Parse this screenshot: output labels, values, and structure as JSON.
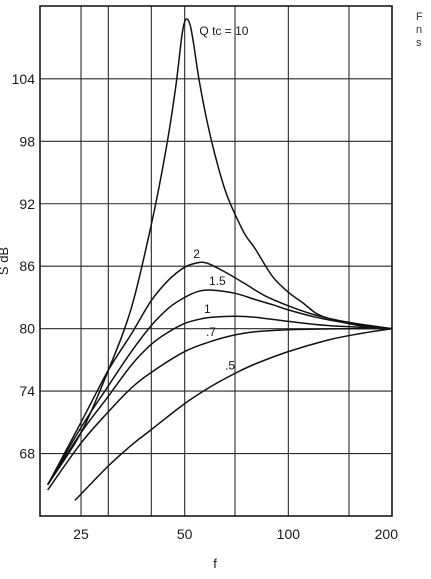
{
  "caption_fragment": [
    "F",
    "n",
    "s"
  ],
  "chart_data": {
    "type": "line",
    "xlabel": "f",
    "ylabel": "S dB",
    "xscale": "log",
    "xlim": [
      19,
      200
    ],
    "ylim": [
      62,
      111
    ],
    "x_ticks": [
      25,
      50,
      100,
      200
    ],
    "x_tick_labels": [
      "25",
      "50",
      "100",
      "200"
    ],
    "x_gridlines": [
      25,
      30,
      40,
      50,
      70,
      100,
      150,
      200
    ],
    "y_ticks": [
      68,
      74,
      80,
      86,
      92,
      98,
      104
    ],
    "y_tick_labels": [
      "68",
      "74",
      "80",
      "86",
      "92",
      "98",
      "104"
    ],
    "grid": true,
    "series": [
      {
        "name": "Q tc = 10",
        "label_text": "Q tc = 10",
        "points": [
          [
            20,
            65
          ],
          [
            25,
            70
          ],
          [
            30,
            76
          ],
          [
            35,
            82
          ],
          [
            40,
            90
          ],
          [
            44,
            97
          ],
          [
            47,
            103
          ],
          [
            49,
            108
          ],
          [
            50,
            109.5
          ],
          [
            51,
            109.7
          ],
          [
            52,
            109
          ],
          [
            53,
            107.5
          ],
          [
            55,
            104
          ],
          [
            58,
            100
          ],
          [
            62,
            96
          ],
          [
            66,
            93
          ],
          [
            70,
            91
          ],
          [
            75,
            89
          ],
          [
            80,
            87.7
          ],
          [
            90,
            85
          ],
          [
            100,
            83.5
          ],
          [
            110,
            82.5
          ],
          [
            120,
            81.5
          ],
          [
            130,
            81
          ],
          [
            140,
            80.7
          ],
          [
            160,
            80.3
          ],
          [
            180,
            80.1
          ],
          [
            200,
            80
          ]
        ]
      },
      {
        "name": "2",
        "label_text": "2",
        "points": [
          [
            20,
            65
          ],
          [
            25,
            71
          ],
          [
            30,
            76
          ],
          [
            35,
            79.5
          ],
          [
            40,
            82.7
          ],
          [
            45,
            84.7
          ],
          [
            50,
            85.9
          ],
          [
            54,
            86.3
          ],
          [
            58,
            86.3
          ],
          [
            65,
            85.5
          ],
          [
            75,
            84.3
          ],
          [
            85,
            83.2
          ],
          [
            100,
            82.2
          ],
          [
            120,
            81.3
          ],
          [
            150,
            80.6
          ],
          [
            200,
            80
          ]
        ]
      },
      {
        "name": "1.5",
        "label_text": "1.5",
        "points": [
          [
            20,
            65
          ],
          [
            25,
            70.5
          ],
          [
            30,
            74.5
          ],
          [
            35,
            77.8
          ],
          [
            40,
            80.3
          ],
          [
            45,
            82
          ],
          [
            50,
            83
          ],
          [
            55,
            83.6
          ],
          [
            60,
            83.7
          ],
          [
            70,
            83.4
          ],
          [
            80,
            82.8
          ],
          [
            90,
            82.3
          ],
          [
            100,
            81.8
          ],
          [
            120,
            81.1
          ],
          [
            150,
            80.5
          ],
          [
            200,
            80
          ]
        ]
      },
      {
        "name": "1",
        "label_text": "1",
        "points": [
          [
            20,
            65
          ],
          [
            25,
            70
          ],
          [
            30,
            73.5
          ],
          [
            35,
            76.5
          ],
          [
            40,
            78.5
          ],
          [
            45,
            79.7
          ],
          [
            50,
            80.5
          ],
          [
            55,
            80.9
          ],
          [
            60,
            81.1
          ],
          [
            70,
            81.2
          ],
          [
            80,
            81.1
          ],
          [
            100,
            80.7
          ],
          [
            130,
            80.3
          ],
          [
            200,
            80
          ]
        ]
      },
      {
        "name": ".7",
        "label_text": ".7",
        "points": [
          [
            20,
            64.5
          ],
          [
            25,
            69
          ],
          [
            30,
            72
          ],
          [
            35,
            74.3
          ],
          [
            40,
            75.8
          ],
          [
            50,
            77.8
          ],
          [
            60,
            78.8
          ],
          [
            70,
            79.4
          ],
          [
            80,
            79.7
          ],
          [
            100,
            79.9
          ],
          [
            150,
            80
          ],
          [
            200,
            80
          ]
        ]
      },
      {
        "name": ".5",
        "label_text": ".5",
        "points": [
          [
            24,
            63.5
          ],
          [
            30,
            66.8
          ],
          [
            35,
            68.8
          ],
          [
            40,
            70.3
          ],
          [
            50,
            72.8
          ],
          [
            60,
            74.5
          ],
          [
            70,
            75.7
          ],
          [
            80,
            76.6
          ],
          [
            100,
            77.8
          ],
          [
            130,
            78.9
          ],
          [
            160,
            79.5
          ],
          [
            200,
            80
          ]
        ]
      }
    ]
  }
}
